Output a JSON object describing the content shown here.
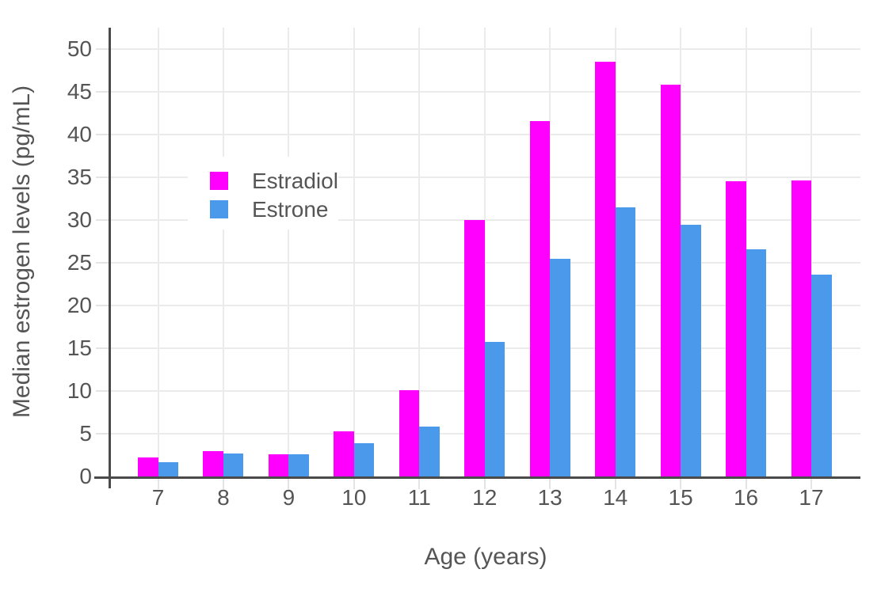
{
  "chart_data": {
    "type": "bar",
    "title": "",
    "xlabel": "Age (years)",
    "ylabel": "Median estrogen levels (pg/mL)",
    "categories": [
      "7",
      "8",
      "9",
      "10",
      "11",
      "12",
      "13",
      "14",
      "15",
      "16",
      "17"
    ],
    "series": [
      {
        "name": "Estradiol",
        "color": "#FF00FF",
        "values": [
          2.2,
          3.0,
          2.6,
          5.3,
          10.1,
          30.0,
          41.6,
          48.5,
          45.8,
          34.5,
          34.6
        ]
      },
      {
        "name": "Estrone",
        "color": "#4A99EA",
        "values": [
          1.7,
          2.7,
          2.6,
          3.9,
          5.8,
          15.7,
          25.5,
          31.5,
          29.4,
          26.6,
          23.6
        ]
      }
    ],
    "ylim": [
      0,
      52.5
    ],
    "yticks": [
      0,
      5,
      10,
      15,
      20,
      25,
      30,
      35,
      40,
      45,
      50
    ],
    "grid": true,
    "legend_position": "inside-top-left",
    "colors": {
      "background": "#ffffff",
      "text": "#555555",
      "axis_line": "#4a4a4a",
      "gridline": "#ebebeb",
      "tick_mark": "#e4e4e4"
    }
  }
}
